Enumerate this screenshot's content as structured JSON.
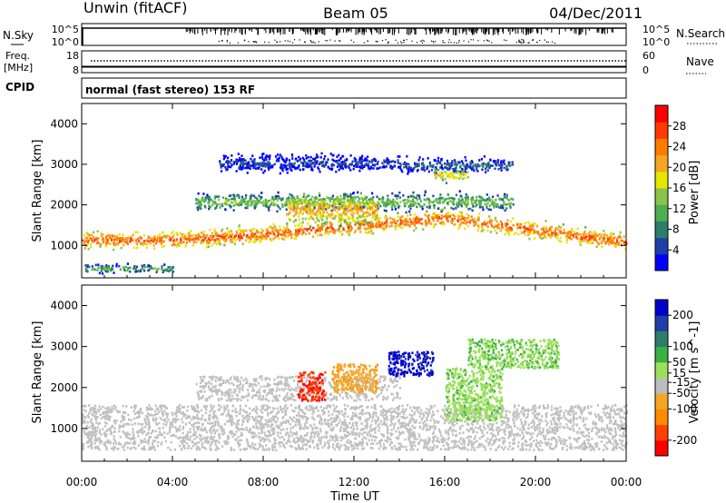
{
  "header": {
    "radar": "Unwin (fitACF)",
    "beam": "Beam 05",
    "date": "04/Dec/2011"
  },
  "mini_panels": {
    "nsky": {
      "label": "N.Sky",
      "ticks": [
        "10^5",
        "10^0"
      ]
    },
    "nsearch": {
      "label": "N.Search",
      "ticks": [
        "10^5",
        "10^0"
      ]
    },
    "freq": {
      "label_line1": "Freq.",
      "label_line2": "[MHz]",
      "ticks": [
        "18",
        "8"
      ]
    },
    "nave": {
      "label": "Nave",
      "ticks": [
        "60",
        "0"
      ]
    },
    "cpid": {
      "label": "CPID",
      "mode": "normal (fast stereo) 153 RF"
    }
  },
  "colors": {
    "power_scale": [
      "#0000ff",
      "#1e3fa8",
      "#2e7d6b",
      "#4caf50",
      "#8bc34a",
      "#e6e600",
      "#f5a623",
      "#ff7b00",
      "#ff3b00",
      "#ff0000"
    ],
    "velocity_scale": [
      "#ff0000",
      "#ff4000",
      "#ff8c00",
      "#f5a623",
      "#bdbdbd",
      "#9be05a",
      "#3cb043",
      "#2e7d6b",
      "#1e3fa8",
      "#0000cc"
    ],
    "ground_scatter": "#c0c0c0"
  },
  "chart_data": [
    {
      "type": "heatmap",
      "name": "power",
      "ylabel": "Slant Range [km]",
      "xlabel": "Time UT",
      "x_ticks": [
        "00:00",
        "04:00",
        "08:00",
        "12:00",
        "16:00",
        "20:00",
        "00:00"
      ],
      "xlim_hours": [
        0,
        24
      ],
      "ylim": [
        200,
        4500
      ],
      "y_ticks": [
        1000,
        2000,
        3000,
        4000
      ],
      "colorbar": {
        "label": "Power [dB]",
        "ticks": [
          4,
          8,
          12,
          16,
          20,
          24,
          28
        ],
        "range": [
          0,
          32
        ]
      },
      "bands": [
        {
          "t": [
            0,
            24
          ],
          "center": [
            1150,
            1150,
            1300,
            1500,
            1700,
            1400,
            1100
          ],
          "width": 280,
          "level": 26
        },
        {
          "t": [
            0,
            4
          ],
          "center": [
            450,
            450
          ],
          "width": 150,
          "level": 12
        },
        {
          "t": [
            5,
            19
          ],
          "center": [
            2100,
            2100
          ],
          "width": 300,
          "level": 14
        },
        {
          "t": [
            9,
            13
          ],
          "center": [
            1900,
            1900
          ],
          "width": 500,
          "level": 22
        },
        {
          "t": [
            6,
            14
          ],
          "center": [
            3050,
            3050
          ],
          "width": 300,
          "level": 6
        },
        {
          "t": [
            14,
            19
          ],
          "center": [
            3000,
            3000
          ],
          "width": 250,
          "level": 8
        },
        {
          "t": [
            15.5,
            17
          ],
          "center": [
            2750,
            2750
          ],
          "width": 200,
          "level": 20
        }
      ]
    },
    {
      "type": "heatmap",
      "name": "velocity",
      "ylabel": "Slant Range [km]",
      "xlabel": "Time UT",
      "x_ticks": [
        "00:00",
        "04:00",
        "08:00",
        "12:00",
        "16:00",
        "20:00",
        "00:00"
      ],
      "xlim_hours": [
        0,
        24
      ],
      "ylim": [
        200,
        4500
      ],
      "y_ticks": [
        1000,
        2000,
        3000,
        4000
      ],
      "colorbar": {
        "label": "Velocity [m s^-1]",
        "ticks": [
          -200,
          -100,
          -50,
          -15,
          15,
          50,
          100,
          200
        ],
        "range": [
          -250,
          250
        ]
      },
      "regions": [
        {
          "t": [
            0,
            24
          ],
          "r": [
            500,
            1600
          ],
          "velocity": 0,
          "ground": true
        },
        {
          "t": [
            5,
            14
          ],
          "r": [
            1700,
            2300
          ],
          "velocity": 0,
          "ground": true
        },
        {
          "t": [
            9.5,
            10.7
          ],
          "r": [
            1700,
            2400
          ],
          "velocity": -200
        },
        {
          "t": [
            11,
            13
          ],
          "r": [
            1900,
            2600
          ],
          "velocity": -80
        },
        {
          "t": [
            13.5,
            15.5
          ],
          "r": [
            2300,
            2900
          ],
          "velocity": 220
        },
        {
          "t": [
            16,
            18.5
          ],
          "r": [
            1200,
            2500
          ],
          "velocity": 30
        },
        {
          "t": [
            17,
            21
          ],
          "r": [
            2500,
            3200
          ],
          "velocity": 40
        }
      ]
    }
  ]
}
